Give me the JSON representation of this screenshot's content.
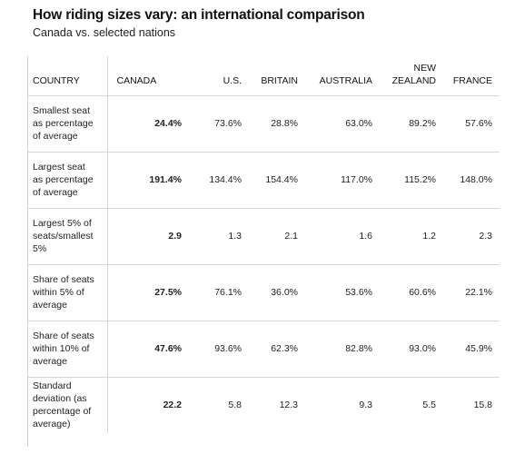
{
  "title": "How riding sizes vary: an international comparison",
  "subtitle": "Canada vs. selected nations",
  "chart_data": {
    "type": "table",
    "title": "How riding sizes vary: an international comparison",
    "subtitle": "Canada vs. selected nations",
    "columns": [
      "COUNTRY",
      "CANADA",
      "U.S.",
      "BRITAIN",
      "AUSTRALIA",
      [
        "NEW",
        "ZEALAND"
      ],
      "FRANCE"
    ],
    "rows": [
      {
        "label": [
          "Smallest seat",
          "as percentage",
          "of average"
        ],
        "values": [
          "24.4%",
          "73.6%",
          "28.8%",
          "63.0%",
          "89.2%",
          "57.6%"
        ]
      },
      {
        "label": [
          "Largest seat",
          "as percentage",
          "of average"
        ],
        "values": [
          "191.4%",
          "134.4%",
          "154.4%",
          "117.0%",
          "115.2%",
          "148.0%"
        ]
      },
      {
        "label": [
          "Largest 5% of",
          "seats/smallest",
          "5%"
        ],
        "values": [
          "2.9",
          "1.3",
          "2.1",
          "1.6",
          "1.2",
          "2.3"
        ]
      },
      {
        "label": [
          "Share of seats",
          "within 5% of",
          "average"
        ],
        "values": [
          "27.5%",
          "76.1%",
          "36.0%",
          "53.6%",
          "60.6%",
          "22.1%"
        ]
      },
      {
        "label": [
          "Share of seats",
          "within 10% of",
          "average"
        ],
        "values": [
          "47.6%",
          "93.6%",
          "62.3%",
          "82.8%",
          "93.0%",
          "45.9%"
        ]
      },
      {
        "label": [
          "Standard",
          "deviation (as",
          "percentage of",
          "average)"
        ],
        "values": [
          "22.2",
          "5.8",
          "12.3",
          "9.3",
          "5.5",
          "15.8"
        ]
      }
    ]
  }
}
